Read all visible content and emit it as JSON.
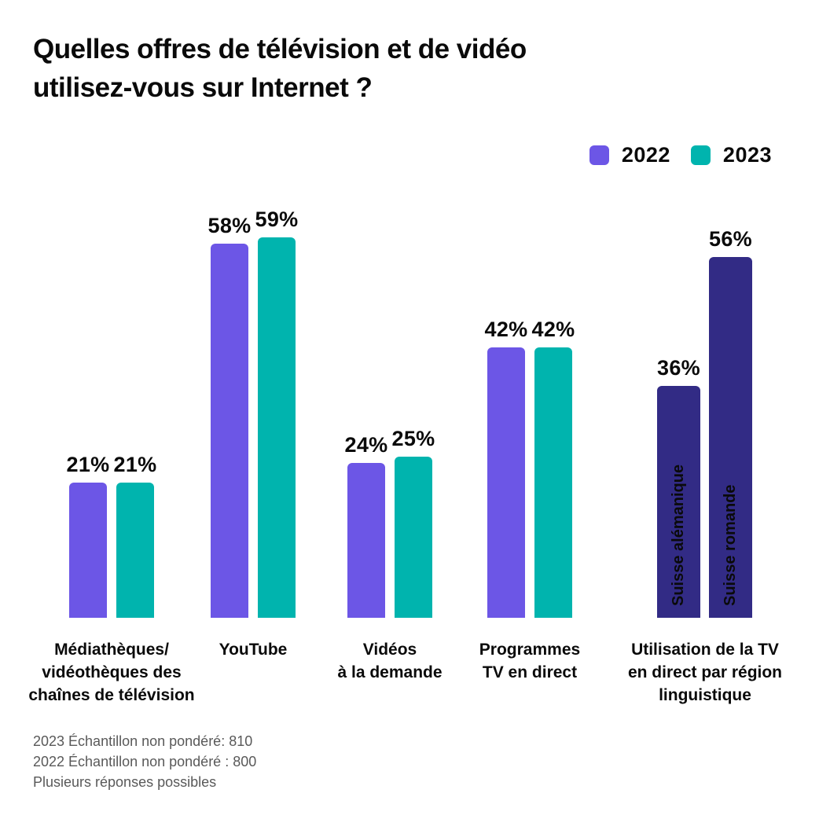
{
  "title_lines": [
    "Quelles offres de télévision et de vidéo",
    "utilisez-vous sur Internet ?"
  ],
  "colors": {
    "purple_2022": "#6C56E6",
    "teal_2023": "#00B4AE",
    "navy_region": "#322B85",
    "text": "#0A0A0A",
    "footnote_gray": "#595959",
    "background": "#FFFFFF"
  },
  "chart_data": {
    "type": "bar",
    "unit": "%",
    "ylim": [
      0,
      62
    ],
    "grid": false,
    "value_labels": "above-bars",
    "legend": {
      "position": "top-right",
      "entries": [
        {
          "label": "2022",
          "color": "#6C56E6"
        },
        {
          "label": "2023",
          "color": "#00B4AE"
        }
      ]
    },
    "groups": [
      {
        "category_lines": [
          "Médiathèques/",
          "vidéothèques des",
          "chaînes de télévision"
        ],
        "bars": [
          {
            "series": "2022",
            "value": 21,
            "color": "#6C56E6"
          },
          {
            "series": "2023",
            "value": 21,
            "color": "#00B4AE"
          }
        ]
      },
      {
        "category_lines": [
          "YouTube"
        ],
        "bars": [
          {
            "series": "2022",
            "value": 58,
            "color": "#6C56E6"
          },
          {
            "series": "2023",
            "value": 59,
            "color": "#00B4AE"
          }
        ]
      },
      {
        "category_lines": [
          "Vidéos",
          "à la demande"
        ],
        "bars": [
          {
            "series": "2022",
            "value": 24,
            "color": "#6C56E6"
          },
          {
            "series": "2023",
            "value": 25,
            "color": "#00B4AE"
          }
        ]
      },
      {
        "category_lines": [
          "Programmes",
          "TV en direct"
        ],
        "bars": [
          {
            "series": "2022",
            "value": 42,
            "color": "#6C56E6"
          },
          {
            "series": "2023",
            "value": 42,
            "color": "#00B4AE"
          }
        ]
      },
      {
        "category_lines": [
          "Utilisation de la TV",
          "en direct par région",
          "linguistique"
        ],
        "bars": [
          {
            "series": "Suisse alémanique",
            "value": 36,
            "color": "#322B85",
            "inner_label": "Suisse alémanique"
          },
          {
            "series": "Suisse romande",
            "value": 56,
            "color": "#322B85",
            "inner_label": "Suisse romande"
          }
        ]
      }
    ]
  },
  "footnotes": [
    "2023 Échantillon non pondéré: 810",
    "2022 Échantillon non pondéré : 800",
    "Plusieurs réponses possibles"
  ]
}
